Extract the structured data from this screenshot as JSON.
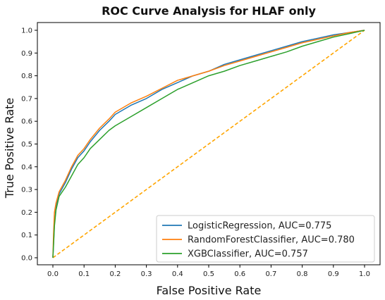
{
  "chart_data": {
    "type": "line",
    "title": "ROC Curve Analysis for HLAF only",
    "xlabel": "False Positive Rate",
    "ylabel": "True Positive Rate",
    "xlim": [
      0.0,
      1.0
    ],
    "ylim": [
      0.0,
      1.0
    ],
    "xticks": [
      "0.0",
      "0.1",
      "0.2",
      "0.3",
      "0.4",
      "0.5",
      "0.6",
      "0.7",
      "0.8",
      "0.9",
      "1.0"
    ],
    "yticks": [
      "0.0",
      "0.1",
      "0.2",
      "0.3",
      "0.4",
      "0.5",
      "0.6",
      "0.7",
      "0.8",
      "0.9",
      "1.0"
    ],
    "grid": false,
    "legend_position": "bottom-right",
    "series": [
      {
        "name": "LogisticRegression, AUC=0.775",
        "color": "#1f77b4",
        "points": [
          [
            0,
            0
          ],
          [
            0.002,
            0.06
          ],
          [
            0.005,
            0.15
          ],
          [
            0.01,
            0.22
          ],
          [
            0.02,
            0.28
          ],
          [
            0.04,
            0.33
          ],
          [
            0.06,
            0.39
          ],
          [
            0.08,
            0.44
          ],
          [
            0.1,
            0.47
          ],
          [
            0.12,
            0.51
          ],
          [
            0.15,
            0.56
          ],
          [
            0.18,
            0.6
          ],
          [
            0.2,
            0.63
          ],
          [
            0.25,
            0.67
          ],
          [
            0.3,
            0.7
          ],
          [
            0.35,
            0.74
          ],
          [
            0.4,
            0.77
          ],
          [
            0.45,
            0.8
          ],
          [
            0.5,
            0.82
          ],
          [
            0.55,
            0.85
          ],
          [
            0.6,
            0.87
          ],
          [
            0.65,
            0.89
          ],
          [
            0.7,
            0.91
          ],
          [
            0.75,
            0.93
          ],
          [
            0.8,
            0.95
          ],
          [
            0.85,
            0.965
          ],
          [
            0.9,
            0.98
          ],
          [
            0.95,
            0.99
          ],
          [
            1.0,
            1.0
          ]
        ]
      },
      {
        "name": "RandomForestClassifier, AUC=0.780",
        "color": "#ff7f0e",
        "points": [
          [
            0,
            0
          ],
          [
            0.002,
            0.1
          ],
          [
            0.005,
            0.2
          ],
          [
            0.01,
            0.24
          ],
          [
            0.02,
            0.29
          ],
          [
            0.04,
            0.34
          ],
          [
            0.06,
            0.4
          ],
          [
            0.08,
            0.45
          ],
          [
            0.1,
            0.48
          ],
          [
            0.12,
            0.52
          ],
          [
            0.15,
            0.57
          ],
          [
            0.18,
            0.61
          ],
          [
            0.2,
            0.64
          ],
          [
            0.25,
            0.68
          ],
          [
            0.3,
            0.71
          ],
          [
            0.35,
            0.745
          ],
          [
            0.4,
            0.78
          ],
          [
            0.45,
            0.8
          ],
          [
            0.5,
            0.82
          ],
          [
            0.55,
            0.845
          ],
          [
            0.6,
            0.865
          ],
          [
            0.65,
            0.885
          ],
          [
            0.7,
            0.905
          ],
          [
            0.75,
            0.925
          ],
          [
            0.8,
            0.945
          ],
          [
            0.85,
            0.96
          ],
          [
            0.9,
            0.975
          ],
          [
            0.95,
            0.99
          ],
          [
            1.0,
            1.0
          ]
        ]
      },
      {
        "name": "XGBClassifier, AUC=0.757",
        "color": "#2ca02c",
        "points": [
          [
            0,
            0
          ],
          [
            0.002,
            0.05
          ],
          [
            0.005,
            0.14
          ],
          [
            0.01,
            0.21
          ],
          [
            0.02,
            0.27
          ],
          [
            0.04,
            0.31
          ],
          [
            0.06,
            0.36
          ],
          [
            0.08,
            0.41
          ],
          [
            0.1,
            0.44
          ],
          [
            0.12,
            0.48
          ],
          [
            0.15,
            0.52
          ],
          [
            0.18,
            0.56
          ],
          [
            0.2,
            0.58
          ],
          [
            0.25,
            0.62
          ],
          [
            0.3,
            0.66
          ],
          [
            0.35,
            0.7
          ],
          [
            0.4,
            0.74
          ],
          [
            0.45,
            0.77
          ],
          [
            0.5,
            0.8
          ],
          [
            0.55,
            0.82
          ],
          [
            0.6,
            0.845
          ],
          [
            0.65,
            0.865
          ],
          [
            0.7,
            0.885
          ],
          [
            0.75,
            0.905
          ],
          [
            0.8,
            0.93
          ],
          [
            0.85,
            0.95
          ],
          [
            0.9,
            0.97
          ],
          [
            0.95,
            0.985
          ],
          [
            1.0,
            1.0
          ]
        ]
      },
      {
        "name": "",
        "color": "#ffa500",
        "style": "dashed",
        "points": [
          [
            0,
            0
          ],
          [
            1,
            1
          ]
        ]
      }
    ]
  }
}
